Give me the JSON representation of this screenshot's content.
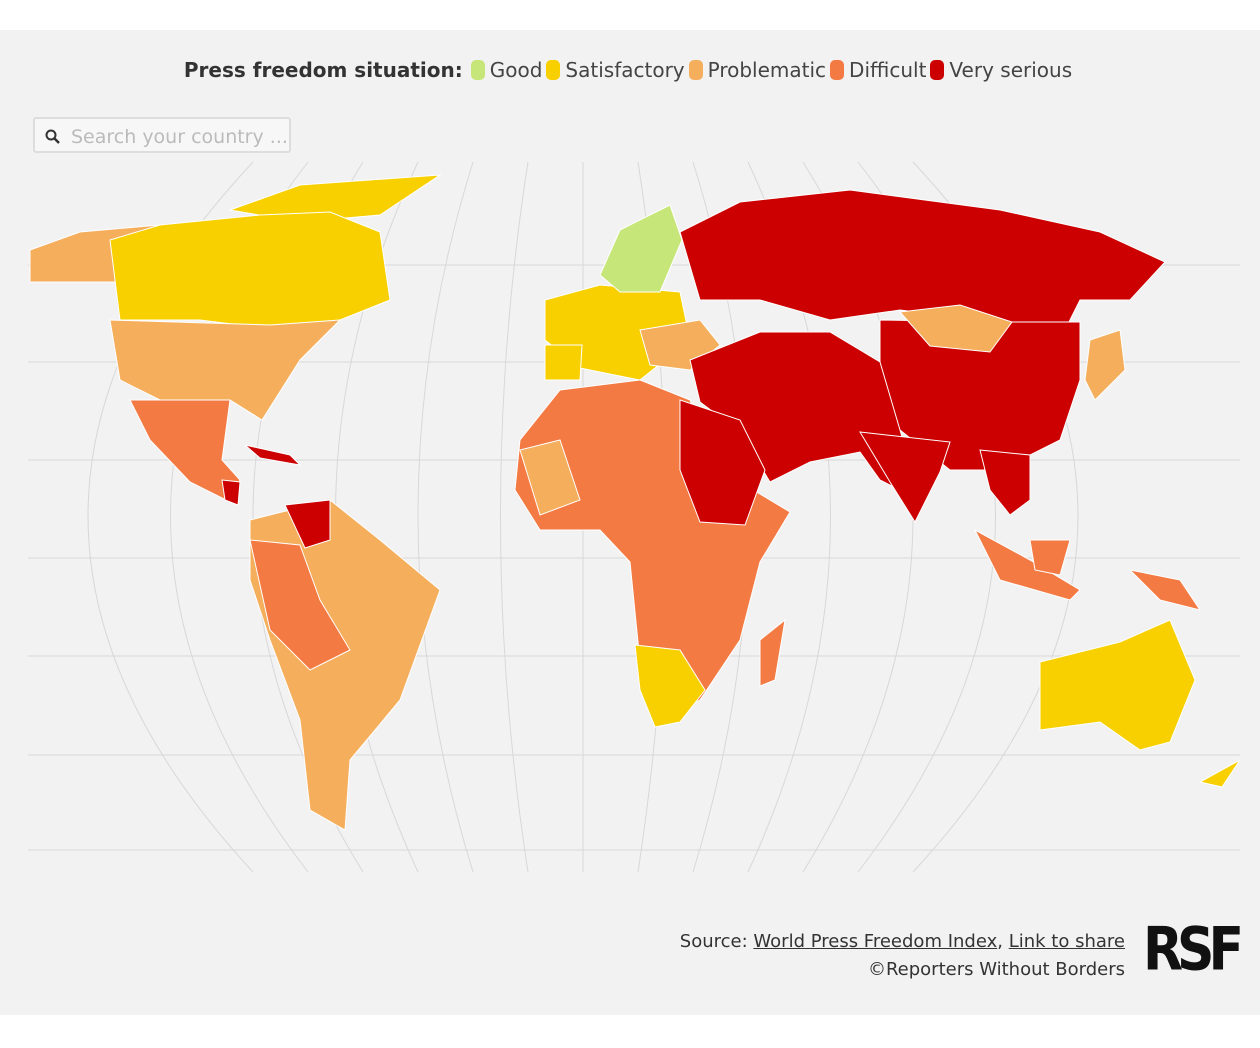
{
  "legend": {
    "title": "Press freedom situation:",
    "items": [
      {
        "label": "Good",
        "color": "#c7e67a"
      },
      {
        "label": "Satisfactory",
        "color": "#f8d000"
      },
      {
        "label": "Problematic",
        "color": "#f5ae5c"
      },
      {
        "label": "Difficult",
        "color": "#f47a43"
      },
      {
        "label": "Very serious",
        "color": "#cc0000"
      }
    ]
  },
  "search": {
    "placeholder": "Search your country ..."
  },
  "footer": {
    "source_label": "Source:",
    "links": [
      "World Press Freedom Index",
      "Link to share"
    ],
    "separator": ",",
    "copyright": "©Reporters Without Borders",
    "logo": "RSF"
  }
}
